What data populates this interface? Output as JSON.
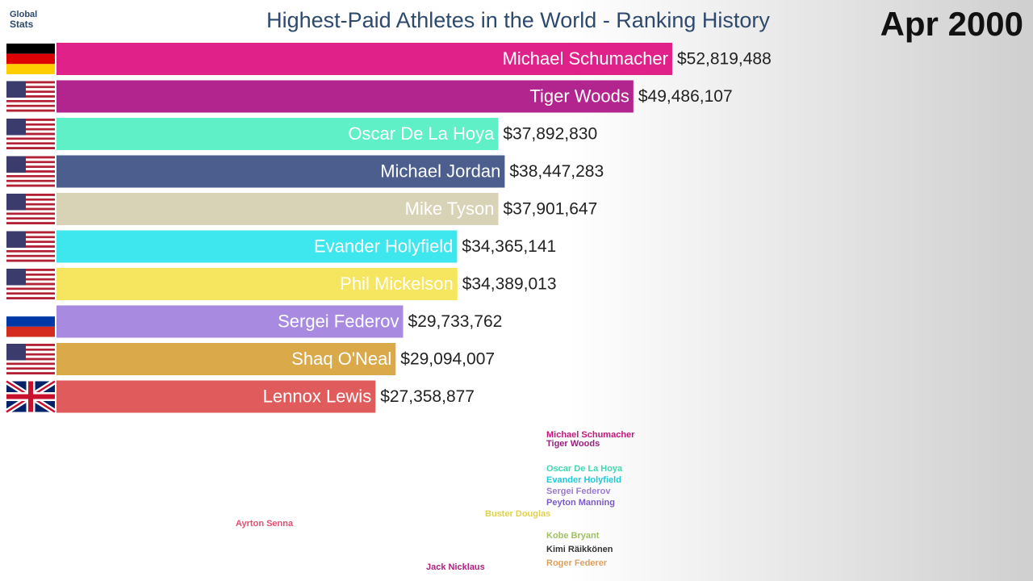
{
  "chart_data": {
    "type": "barh",
    "title": "Highest-Paid Athletes in the World - Ranking History",
    "date": "Apr 2000",
    "logo": [
      "Global",
      "Stats"
    ],
    "categories": [
      "Michael Schumacher",
      "Tiger Woods",
      "Oscar De La Hoya",
      "Michael Jordan",
      "Mike Tyson",
      "Evander Holyfield",
      "Phil Mickelson",
      "Sergei Federov",
      "Shaq O'Neal",
      "Lennox Lewis"
    ],
    "values": [
      52819488,
      49486107,
      37892830,
      38447283,
      37901647,
      34365141,
      34389013,
      29733762,
      29094007,
      27358877
    ],
    "value_labels": [
      "$52,819,488",
      "$49,486,107",
      "$37,892,830",
      "$38,447,283",
      "$37,901,647",
      "$34,365,141",
      "$34,389,013",
      "$29,733,762",
      "$29,094,007",
      "$27,358,877"
    ],
    "colors": [
      "#e0218a",
      "#b3258e",
      "#5ff0c8",
      "#4b5e8e",
      "#d8d3b6",
      "#3ee6ee",
      "#f6e55e",
      "#a88be0",
      "#d9a94a",
      "#e05c5c"
    ],
    "flags": [
      "de",
      "us",
      "us",
      "us",
      "us",
      "us",
      "us",
      "ru",
      "us",
      "gb"
    ],
    "xlim": [
      0,
      52819488
    ],
    "line_labels": [
      {
        "text": "Michael Schumacher",
        "color": "#c0187a"
      },
      {
        "text": "Tiger Woods",
        "color": "#9a2080"
      },
      {
        "text": "Oscar De La Hoya",
        "color": "#3fd8b0"
      },
      {
        "text": "Evander Holyfield",
        "color": "#20c8d8"
      },
      {
        "text": "Sergei Federov",
        "color": "#9a7ad0"
      },
      {
        "text": "Peyton Manning",
        "color": "#7a5ac8"
      },
      {
        "text": "Buster Douglas",
        "color": "#e0d050"
      },
      {
        "text": "Ayrton Senna",
        "color": "#e05070"
      },
      {
        "text": "Kobe Bryant",
        "color": "#a0c060"
      },
      {
        "text": "Kimi Räikkönen",
        "color": "#333333"
      },
      {
        "text": "Roger Federer",
        "color": "#e0a060"
      },
      {
        "text": "Jack Nicklaus",
        "color": "#b02080"
      }
    ]
  }
}
